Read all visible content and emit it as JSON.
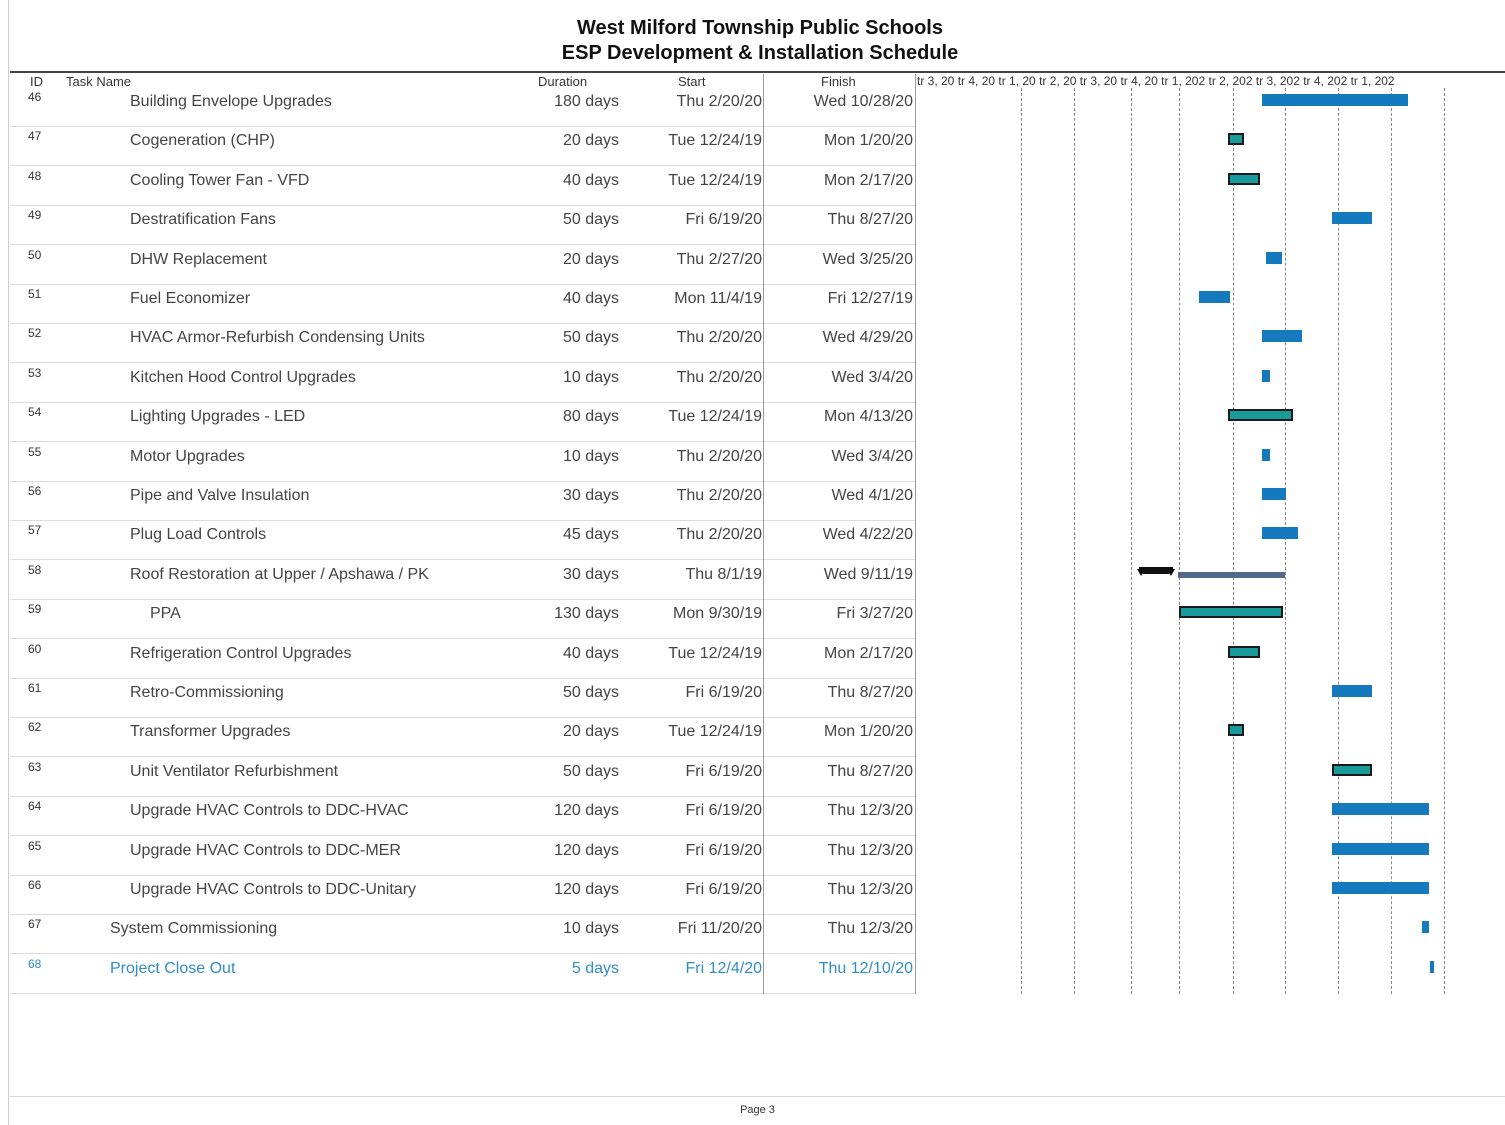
{
  "title": [
    "West Milford Township Public Schools",
    "ESP Development & Installation Schedule"
  ],
  "columns": {
    "id": "ID",
    "name": "Task Name",
    "duration": "Duration",
    "start": "Start",
    "finish": "Finish"
  },
  "timescale": "tr 3, 20 tr 4, 20 tr 1, 20 tr 2, 20 tr 3, 20 tr 4, 20 tr 1, 202 tr 2, 202 tr 3, 202 tr 4, 202 tr 1, 202",
  "tasks": [
    {
      "id": "46",
      "name": "Building Envelope Upgrades",
      "duration": "180 days",
      "start": "Thu 2/20/20",
      "finish": "Wed 10/28/20",
      "indent": 2,
      "bar_style": "normal",
      "bar_start": "2020-02-20",
      "bar_end": "2020-10-28"
    },
    {
      "id": "47",
      "name": "Cogeneration (CHP)",
      "duration": "20 days",
      "start": "Tue 12/24/19",
      "finish": "Mon 1/20/20",
      "indent": 2,
      "bar_style": "critical",
      "bar_start": "2019-12-24",
      "bar_end": "2020-01-20"
    },
    {
      "id": "48",
      "name": "Cooling Tower Fan - VFD",
      "duration": "40 days",
      "start": "Tue 12/24/19",
      "finish": "Mon 2/17/20",
      "indent": 2,
      "bar_style": "critical",
      "bar_start": "2019-12-24",
      "bar_end": "2020-02-17"
    },
    {
      "id": "49",
      "name": "Destratification Fans",
      "duration": "50 days",
      "start": "Fri 6/19/20",
      "finish": "Thu 8/27/20",
      "indent": 2,
      "bar_style": "normal",
      "bar_start": "2020-06-19",
      "bar_end": "2020-08-27"
    },
    {
      "id": "50",
      "name": "DHW Replacement",
      "duration": "20 days",
      "start": "Thu 2/27/20",
      "finish": "Wed 3/25/20",
      "indent": 2,
      "bar_style": "normal",
      "bar_start": "2020-02-27",
      "bar_end": "2020-03-25"
    },
    {
      "id": "51",
      "name": "Fuel Economizer",
      "duration": "40 days",
      "start": "Mon 11/4/19",
      "finish": "Fri 12/27/19",
      "indent": 2,
      "bar_style": "normal",
      "bar_start": "2019-11-04",
      "bar_end": "2019-12-27"
    },
    {
      "id": "52",
      "name": "HVAC Armor-Refurbish Condensing Units",
      "duration": "50 days",
      "start": "Thu 2/20/20",
      "finish": "Wed 4/29/20",
      "indent": 2,
      "bar_style": "normal",
      "bar_start": "2020-02-20",
      "bar_end": "2020-04-29"
    },
    {
      "id": "53",
      "name": "Kitchen Hood Control Upgrades",
      "duration": "10 days",
      "start": "Thu 2/20/20",
      "finish": "Wed 3/4/20",
      "indent": 2,
      "bar_style": "normal",
      "bar_start": "2020-02-20",
      "bar_end": "2020-03-04"
    },
    {
      "id": "54",
      "name": "Lighting Upgrades - LED",
      "duration": "80 days",
      "start": "Tue 12/24/19",
      "finish": "Mon 4/13/20",
      "indent": 2,
      "bar_style": "critical",
      "bar_start": "2019-12-24",
      "bar_end": "2020-04-13"
    },
    {
      "id": "55",
      "name": "Motor Upgrades",
      "duration": "10 days",
      "start": "Thu 2/20/20",
      "finish": "Wed 3/4/20",
      "indent": 2,
      "bar_style": "normal",
      "bar_start": "2020-02-20",
      "bar_end": "2020-03-04"
    },
    {
      "id": "56",
      "name": "Pipe and Valve Insulation",
      "duration": "30 days",
      "start": "Thu 2/20/20",
      "finish": "Wed 4/1/20",
      "indent": 2,
      "bar_style": "normal",
      "bar_start": "2020-02-20",
      "bar_end": "2020-04-01"
    },
    {
      "id": "57",
      "name": "Plug Load Controls",
      "duration": "45 days",
      "start": "Thu 2/20/20",
      "finish": "Wed 4/22/20",
      "indent": 2,
      "bar_style": "normal",
      "bar_start": "2020-02-20",
      "bar_end": "2020-04-22"
    },
    {
      "id": "58",
      "name": "Roof Restoration at Upper / Apshawa / PK",
      "duration": "30 days",
      "start": "Thu 8/1/19",
      "finish": "Wed 9/11/19",
      "indent": 2,
      "bar_style": "summary",
      "bar_start": "2019-08-01",
      "bar_end": "2019-09-11"
    },
    {
      "id": "59",
      "name": "PPA",
      "duration": "130 days",
      "start": "Mon 9/30/19",
      "finish": "Fri 3/27/20",
      "indent": 4,
      "bar_style": "critical",
      "bar_start": "2019-09-30",
      "bar_end": "2020-03-27"
    },
    {
      "id": "60",
      "name": "Refrigeration Control Upgrades",
      "duration": "40 days",
      "start": "Tue 12/24/19",
      "finish": "Mon 2/17/20",
      "indent": 2,
      "bar_style": "critical",
      "bar_start": "2019-12-24",
      "bar_end": "2020-02-17"
    },
    {
      "id": "61",
      "name": "Retro-Commissioning",
      "duration": "50 days",
      "start": "Fri 6/19/20",
      "finish": "Thu 8/27/20",
      "indent": 2,
      "bar_style": "normal",
      "bar_start": "2020-06-19",
      "bar_end": "2020-08-27"
    },
    {
      "id": "62",
      "name": "Transformer Upgrades",
      "duration": "20 days",
      "start": "Tue 12/24/19",
      "finish": "Mon 1/20/20",
      "indent": 2,
      "bar_style": "critical",
      "bar_start": "2019-12-24",
      "bar_end": "2020-01-20"
    },
    {
      "id": "63",
      "name": "Unit Ventilator Refurbishment",
      "duration": "50 days",
      "start": "Fri 6/19/20",
      "finish": "Thu 8/27/20",
      "indent": 2,
      "bar_style": "critical",
      "bar_start": "2020-06-19",
      "bar_end": "2020-08-27"
    },
    {
      "id": "64",
      "name": "Upgrade HVAC Controls to DDC-HVAC",
      "duration": "120 days",
      "start": "Fri 6/19/20",
      "finish": "Thu 12/3/20",
      "indent": 2,
      "bar_style": "normal",
      "bar_start": "2020-06-19",
      "bar_end": "2020-12-03"
    },
    {
      "id": "65",
      "name": "Upgrade HVAC Controls to DDC-MER",
      "duration": "120 days",
      "start": "Fri 6/19/20",
      "finish": "Thu 12/3/20",
      "indent": 2,
      "bar_style": "normal",
      "bar_start": "2020-06-19",
      "bar_end": "2020-12-03"
    },
    {
      "id": "66",
      "name": "Upgrade HVAC Controls to DDC-Unitary",
      "duration": "120 days",
      "start": "Fri 6/19/20",
      "finish": "Thu 12/3/20",
      "indent": 2,
      "bar_style": "normal",
      "bar_start": "2020-06-19",
      "bar_end": "2020-12-03"
    },
    {
      "id": "67",
      "name": "System Commissioning",
      "duration": "10 days",
      "start": "Fri 11/20/20",
      "finish": "Thu 12/3/20",
      "indent": 1,
      "bar_style": "normal",
      "bar_start": "2020-11-20",
      "bar_end": "2020-12-03"
    },
    {
      "id": "68",
      "name": "Project Close Out",
      "duration": "5 days",
      "start": "Fri 12/4/20",
      "finish": "Thu 12/10/20",
      "indent": 1,
      "bar_style": "normal",
      "accent": true,
      "bar_start": "2020-12-04",
      "bar_end": "2020-12-10"
    }
  ],
  "footer": "Page 3",
  "colors": {
    "task_bar": "#1479bd",
    "critical_bar": "#1a9b9b",
    "summary_bar": "#506b89",
    "accent_text": "#2f8ec6"
  }
}
